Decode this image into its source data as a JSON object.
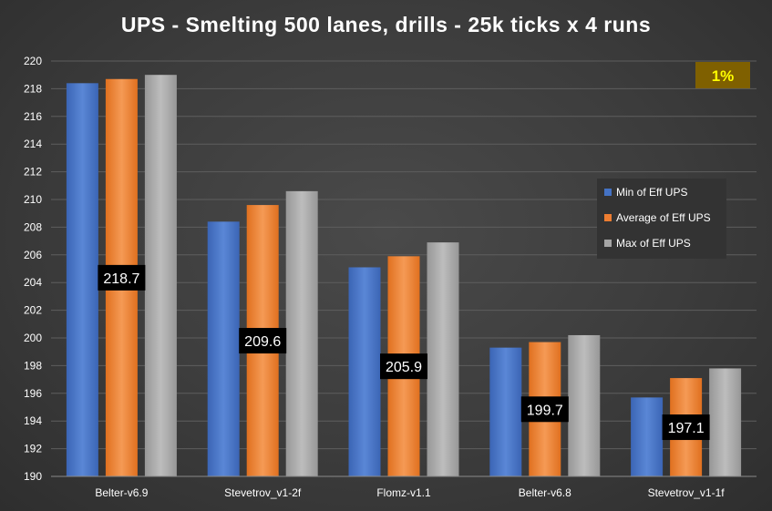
{
  "chart_data": {
    "type": "bar",
    "title": "UPS - Smelting 500 lanes, drills - 25k ticks x 4 runs",
    "categories": [
      "Belter-v6.9",
      "Stevetrov_v1-2f",
      "Flomz-v1.1",
      "Belter-v6.8",
      "Stevetrov_v1-1f"
    ],
    "series": [
      {
        "name": "Min of Eff UPS",
        "color": "#4472c4",
        "values": [
          218.4,
          208.4,
          205.1,
          199.3,
          195.7
        ]
      },
      {
        "name": "Average of Eff UPS",
        "color": "#ed7d31",
        "values": [
          218.7,
          209.6,
          205.9,
          199.7,
          197.1
        ]
      },
      {
        "name": "Max of Eff UPS",
        "color": "#a5a5a5",
        "values": [
          219.0,
          210.6,
          206.9,
          200.2,
          197.8
        ]
      }
    ],
    "data_labels": [
      "218.7",
      "209.6",
      "205.9",
      "199.7",
      "197.1"
    ],
    "ylim": [
      190,
      220
    ],
    "yticks": [
      190,
      192,
      194,
      196,
      198,
      200,
      202,
      204,
      206,
      208,
      210,
      212,
      214,
      216,
      218,
      220
    ],
    "xlabel": "",
    "ylabel": "",
    "legend_position": "right",
    "annotation": "1%",
    "grid": true
  }
}
